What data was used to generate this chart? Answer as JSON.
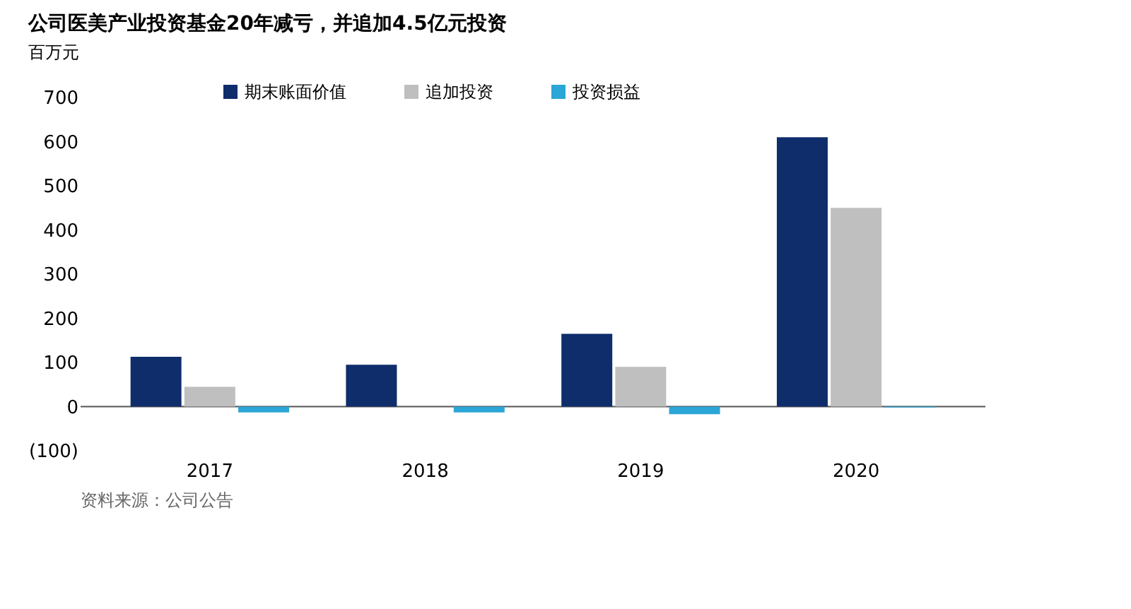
{
  "chart_data": {
    "type": "bar",
    "title": "公司医美产业投资基金20年减亏，并追加4.5亿元投资",
    "ylabel": "百万元",
    "categories": [
      "2017",
      "2018",
      "2019",
      "2020"
    ],
    "series": [
      {
        "name": "期末账面价值",
        "color": "#0f2d6b",
        "values": [
          113,
          95,
          165,
          610
        ]
      },
      {
        "name": "追加投资",
        "color": "#bfbfbf",
        "values": [
          45,
          null,
          90,
          450
        ]
      },
      {
        "name": "投资损益",
        "color": "#2ba6d6",
        "values": [
          -13,
          -13,
          -17,
          -2
        ]
      }
    ],
    "ylim": [
      -100,
      700
    ],
    "yticks": [
      {
        "value": -100,
        "label": "(100)"
      },
      0,
      100,
      200,
      300,
      400,
      500,
      600,
      700
    ],
    "ref_lines": [
      {
        "axis": "y",
        "value": 0,
        "color": "#555555"
      }
    ],
    "grid": false,
    "legend": "top",
    "annotations": [
      "资料来源：公司公告"
    ]
  }
}
